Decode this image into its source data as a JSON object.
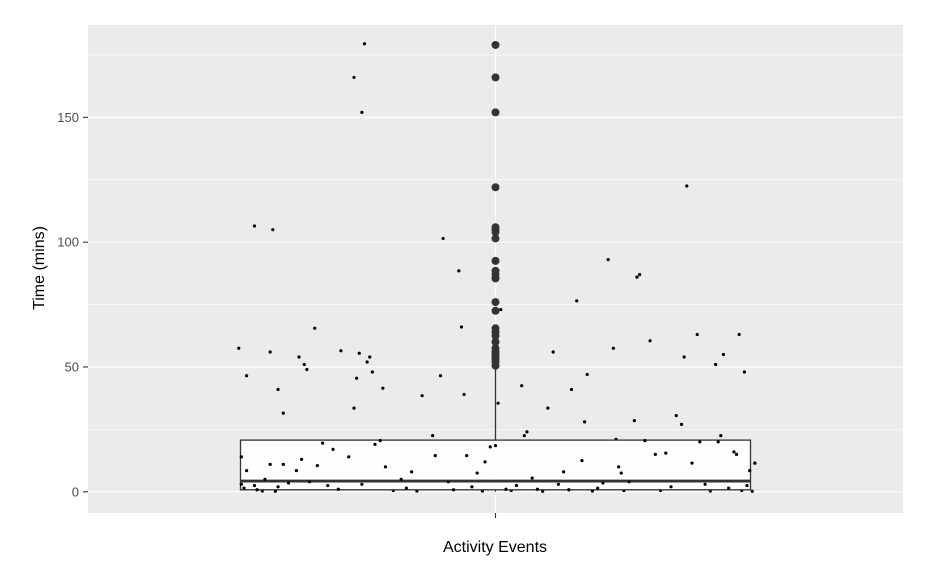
{
  "chart_data": {
    "type": "boxplot",
    "title": "",
    "xlabel": "Activity Events",
    "ylabel": "Time (mins)",
    "categories": [
      "Activity Events"
    ],
    "ylim": [
      -8.5,
      187
    ],
    "yticks": [
      0,
      50,
      100,
      150
    ],
    "y_tick_labels": [
      "0",
      "50",
      "100",
      "150"
    ],
    "grid": true,
    "legend": "none",
    "colors": {
      "panel_background": "#ebebeb",
      "grid": "#ffffff",
      "box_fill": "#ffffff",
      "box_stroke": "#333333",
      "points": "#000000",
      "outliers": "#333333"
    },
    "box": {
      "q1": 0.8,
      "median": 4.3,
      "q3": 20.7,
      "whisker_low": 0,
      "whisker_high": 49
    },
    "outliers": [
      50.5,
      52,
      53,
      54,
      55,
      56,
      57.5,
      60,
      62.5,
      64,
      65.5,
      72.5,
      76,
      85.5,
      87,
      88.5,
      92.5,
      101.5,
      104,
      105,
      106,
      122,
      152,
      166,
      179
    ],
    "jitter_points": [
      [
        0.07,
        14
      ],
      [
        0.09,
        8.5
      ],
      [
        0.07,
        3
      ],
      [
        0.08,
        1.5
      ],
      [
        0.09,
        46.5
      ],
      [
        0.12,
        2.5
      ],
      [
        0.13,
        0.8
      ],
      [
        0.15,
        0.3
      ],
      [
        0.16,
        5
      ],
      [
        0.18,
        11
      ],
      [
        0.2,
        0.2
      ],
      [
        0.21,
        2
      ],
      [
        0.23,
        11
      ],
      [
        0.25,
        3.5
      ],
      [
        0.06,
        57.5
      ],
      [
        0.12,
        106.5
      ],
      [
        0.18,
        56
      ],
      [
        0.19,
        105
      ],
      [
        0.21,
        41
      ],
      [
        0.23,
        31.5
      ],
      [
        0.29,
        54
      ],
      [
        0.31,
        51
      ],
      [
        0.32,
        49
      ],
      [
        0.35,
        65.5
      ],
      [
        0.28,
        8.5
      ],
      [
        0.3,
        13
      ],
      [
        0.33,
        4
      ],
      [
        0.36,
        10.5
      ],
      [
        0.38,
        19.5
      ],
      [
        0.4,
        2.5
      ],
      [
        0.42,
        17
      ],
      [
        0.44,
        1
      ],
      [
        0.45,
        56.5
      ],
      [
        0.48,
        14
      ],
      [
        0.5,
        33.5
      ],
      [
        0.51,
        45.5
      ],
      [
        0.52,
        55.5
      ],
      [
        0.53,
        3
      ],
      [
        0.55,
        52
      ],
      [
        0.56,
        54
      ],
      [
        0.57,
        48
      ],
      [
        0.58,
        19
      ],
      [
        0.6,
        20.5
      ],
      [
        0.61,
        41.5
      ],
      [
        0.62,
        10
      ],
      [
        0.54,
        179.5
      ],
      [
        0.5,
        166
      ],
      [
        0.53,
        152
      ],
      [
        0.65,
        0.5
      ],
      [
        0.68,
        5
      ],
      [
        0.7,
        1.5
      ],
      [
        0.72,
        8
      ],
      [
        0.74,
        0.3
      ],
      [
        0.76,
        38.5
      ],
      [
        0.8,
        22.5
      ],
      [
        0.81,
        14.5
      ],
      [
        0.83,
        46.5
      ],
      [
        0.84,
        101.5
      ],
      [
        0.86,
        4
      ],
      [
        0.88,
        0.8
      ],
      [
        0.9,
        88.5
      ],
      [
        0.91,
        66
      ],
      [
        0.92,
        39
      ],
      [
        0.93,
        14.5
      ],
      [
        0.95,
        2
      ],
      [
        0.97,
        7.5
      ],
      [
        0.99,
        0.3
      ],
      [
        1.0,
        12
      ],
      [
        1.02,
        18
      ],
      [
        1.04,
        18.5
      ],
      [
        1.05,
        35.5
      ],
      [
        1.06,
        73
      ],
      [
        1.08,
        1
      ],
      [
        1.1,
        0.5
      ],
      [
        1.12,
        2.5
      ],
      [
        1.14,
        42.5
      ],
      [
        1.16,
        24
      ],
      [
        1.15,
        22.5
      ],
      [
        1.18,
        5.5
      ],
      [
        1.2,
        1
      ],
      [
        1.22,
        0.2
      ],
      [
        1.24,
        33.5
      ],
      [
        1.26,
        56
      ],
      [
        1.28,
        3
      ],
      [
        1.3,
        8
      ],
      [
        1.32,
        0.8
      ],
      [
        1.33,
        41
      ],
      [
        1.35,
        76.5
      ],
      [
        1.37,
        12.5
      ],
      [
        1.39,
        47
      ],
      [
        1.38,
        28
      ],
      [
        1.41,
        0.3
      ],
      [
        1.43,
        1.5
      ],
      [
        1.45,
        3.5
      ],
      [
        1.47,
        93
      ],
      [
        1.49,
        57.5
      ],
      [
        1.5,
        21
      ],
      [
        1.51,
        10
      ],
      [
        1.52,
        7.5
      ],
      [
        1.53,
        0.5
      ],
      [
        1.55,
        4
      ],
      [
        1.57,
        28.5
      ],
      [
        1.58,
        86
      ],
      [
        1.59,
        87
      ],
      [
        1.61,
        20.5
      ],
      [
        1.63,
        60.5
      ],
      [
        1.65,
        15
      ],
      [
        1.67,
        0.5
      ],
      [
        1.69,
        15.5
      ],
      [
        1.71,
        2
      ],
      [
        1.73,
        30.5
      ],
      [
        1.75,
        27
      ],
      [
        1.77,
        122.5
      ],
      [
        1.76,
        54
      ],
      [
        1.79,
        11.5
      ],
      [
        1.81,
        63
      ],
      [
        1.82,
        20
      ],
      [
        1.84,
        3
      ],
      [
        1.86,
        0.3
      ],
      [
        1.88,
        51
      ],
      [
        1.89,
        20
      ],
      [
        1.9,
        22.5
      ],
      [
        1.91,
        55
      ],
      [
        1.93,
        1.5
      ],
      [
        1.95,
        16
      ],
      [
        1.96,
        15
      ],
      [
        1.97,
        63
      ],
      [
        1.99,
        48
      ],
      [
        2.0,
        2.5
      ],
      [
        2.01,
        8.5
      ],
      [
        2.03,
        11.5
      ],
      [
        1.98,
        0.5
      ],
      [
        2.02,
        0.2
      ]
    ]
  }
}
